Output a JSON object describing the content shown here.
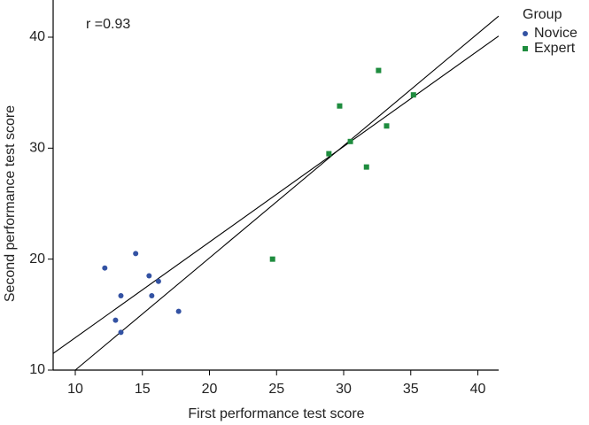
{
  "chart_data": {
    "type": "scatter",
    "annotation": "r =0.93",
    "x_label": "First performance test score",
    "y_label": "Second performance test score",
    "legend_title": "Group",
    "legend_position": "right",
    "xlim": [
      8.35,
      41.55
    ],
    "ylim": [
      10,
      43.35
    ],
    "xticks": [
      10,
      15,
      20,
      25,
      30,
      35,
      40
    ],
    "yticks": [
      10,
      20,
      30,
      40
    ],
    "series": [
      {
        "name": "Novice",
        "color": "#3352a3",
        "marker": "circle",
        "x": [
          12.2,
          14.5,
          15.5,
          16.2,
          13.4,
          15.7,
          13.0,
          13.4,
          17.7
        ],
        "values": [
          19.2,
          20.5,
          18.5,
          18.0,
          16.7,
          16.7,
          14.5,
          13.4,
          15.3
        ]
      },
      {
        "name": "Expert",
        "color": "#1e8c3e",
        "marker": "square",
        "x": [
          24.7,
          28.9,
          29.7,
          30.5,
          31.7,
          32.6,
          33.2,
          35.2
        ],
        "values": [
          20.0,
          29.5,
          33.8,
          30.6,
          28.3,
          37.0,
          32.0,
          34.8
        ]
      }
    ],
    "lines": [
      {
        "color": "#000000",
        "x": [
          10,
          41.55
        ],
        "values": [
          10,
          41.9
        ]
      },
      {
        "color": "#000000",
        "x": [
          8.35,
          41.55
        ],
        "values": [
          11.5,
          40.1
        ]
      }
    ]
  }
}
